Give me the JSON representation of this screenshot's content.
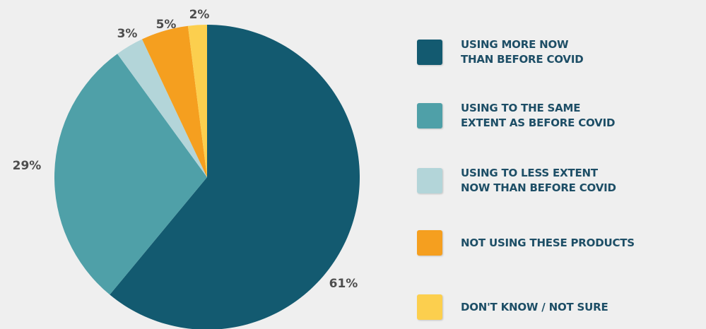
{
  "chart_data": {
    "type": "pie",
    "start_angle_deg": 0,
    "direction": "clockwise",
    "slices": [
      {
        "label": "USING MORE NOW\nTHAN BEFORE COVID",
        "value": 61,
        "value_label": "61%",
        "color": "#135a70"
      },
      {
        "label": "USING TO THE SAME\nEXTENT AS BEFORE COVID",
        "value": 29,
        "value_label": "29%",
        "color": "#4fa0a8"
      },
      {
        "label": "USING TO LESS EXTENT\nNOW THAN BEFORE COVID",
        "value": 3,
        "value_label": "3%",
        "color": "#b3d5d9"
      },
      {
        "label": "NOT USING THESE PRODUCTS",
        "value": 5,
        "value_label": "5%",
        "color": "#f59f1f"
      },
      {
        "label": "DON'T KNOW / NOT SURE",
        "value": 2,
        "value_label": "2%",
        "color": "#fccf4e"
      }
    ],
    "legend_placement": "right"
  }
}
